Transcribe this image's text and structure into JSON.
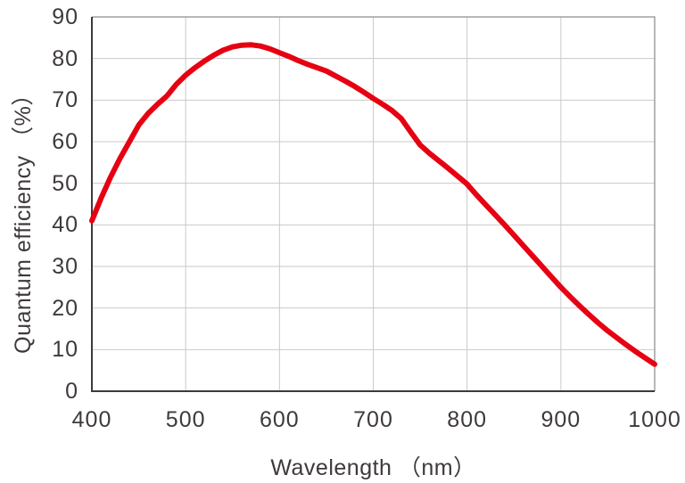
{
  "chart_data": {
    "type": "line",
    "title": "",
    "xlabel": "Wavelength （nm）",
    "ylabel": "Quantum efficiency （%）",
    "xlim": [
      400,
      1000
    ],
    "ylim": [
      0,
      90
    ],
    "x_ticks": [
      400,
      500,
      600,
      700,
      800,
      900,
      1000
    ],
    "y_ticks": [
      0,
      10,
      20,
      30,
      40,
      50,
      60,
      70,
      80,
      90
    ],
    "grid": true,
    "legend": "none",
    "line_color": "#e60012",
    "line_width": 6,
    "series": [
      {
        "name": "Quantum efficiency",
        "x": [
          400,
          410,
          420,
          430,
          440,
          450,
          460,
          470,
          480,
          490,
          500,
          510,
          520,
          530,
          540,
          550,
          560,
          570,
          580,
          590,
          600,
          610,
          620,
          630,
          640,
          650,
          660,
          670,
          680,
          690,
          700,
          710,
          720,
          730,
          740,
          750,
          760,
          770,
          780,
          790,
          800,
          810,
          820,
          830,
          840,
          850,
          860,
          870,
          880,
          890,
          900,
          910,
          920,
          930,
          940,
          950,
          960,
          970,
          980,
          990,
          1000
        ],
        "values": [
          41,
          46.5,
          51.5,
          56,
          60,
          64,
          66.8,
          69,
          71,
          73.8,
          76,
          77.8,
          79.4,
          80.8,
          82,
          82.8,
          83.2,
          83.3,
          83,
          82.3,
          81.4,
          80.5,
          79.5,
          78.6,
          77.8,
          77,
          75.8,
          74.6,
          73.3,
          71.9,
          70.4,
          69,
          67.5,
          65.5,
          62.3,
          59.2,
          57.2,
          55.4,
          53.6,
          51.7,
          49.8,
          47.2,
          44.8,
          42.4,
          40,
          37.5,
          35,
          32.5,
          30,
          27.5,
          25,
          22.7,
          20.5,
          18.4,
          16.4,
          14.5,
          12.8,
          11.1,
          9.5,
          8,
          6.5
        ]
      }
    ],
    "peak": {
      "wavelength_nm": 570,
      "qe_percent": 83.3
    }
  },
  "colors": {
    "line": "#e60012",
    "axis": "#3e3a39",
    "frame": "#9fa0a0",
    "grid": "#c9caca",
    "text": "#3e3a39",
    "background": "#ffffff"
  }
}
